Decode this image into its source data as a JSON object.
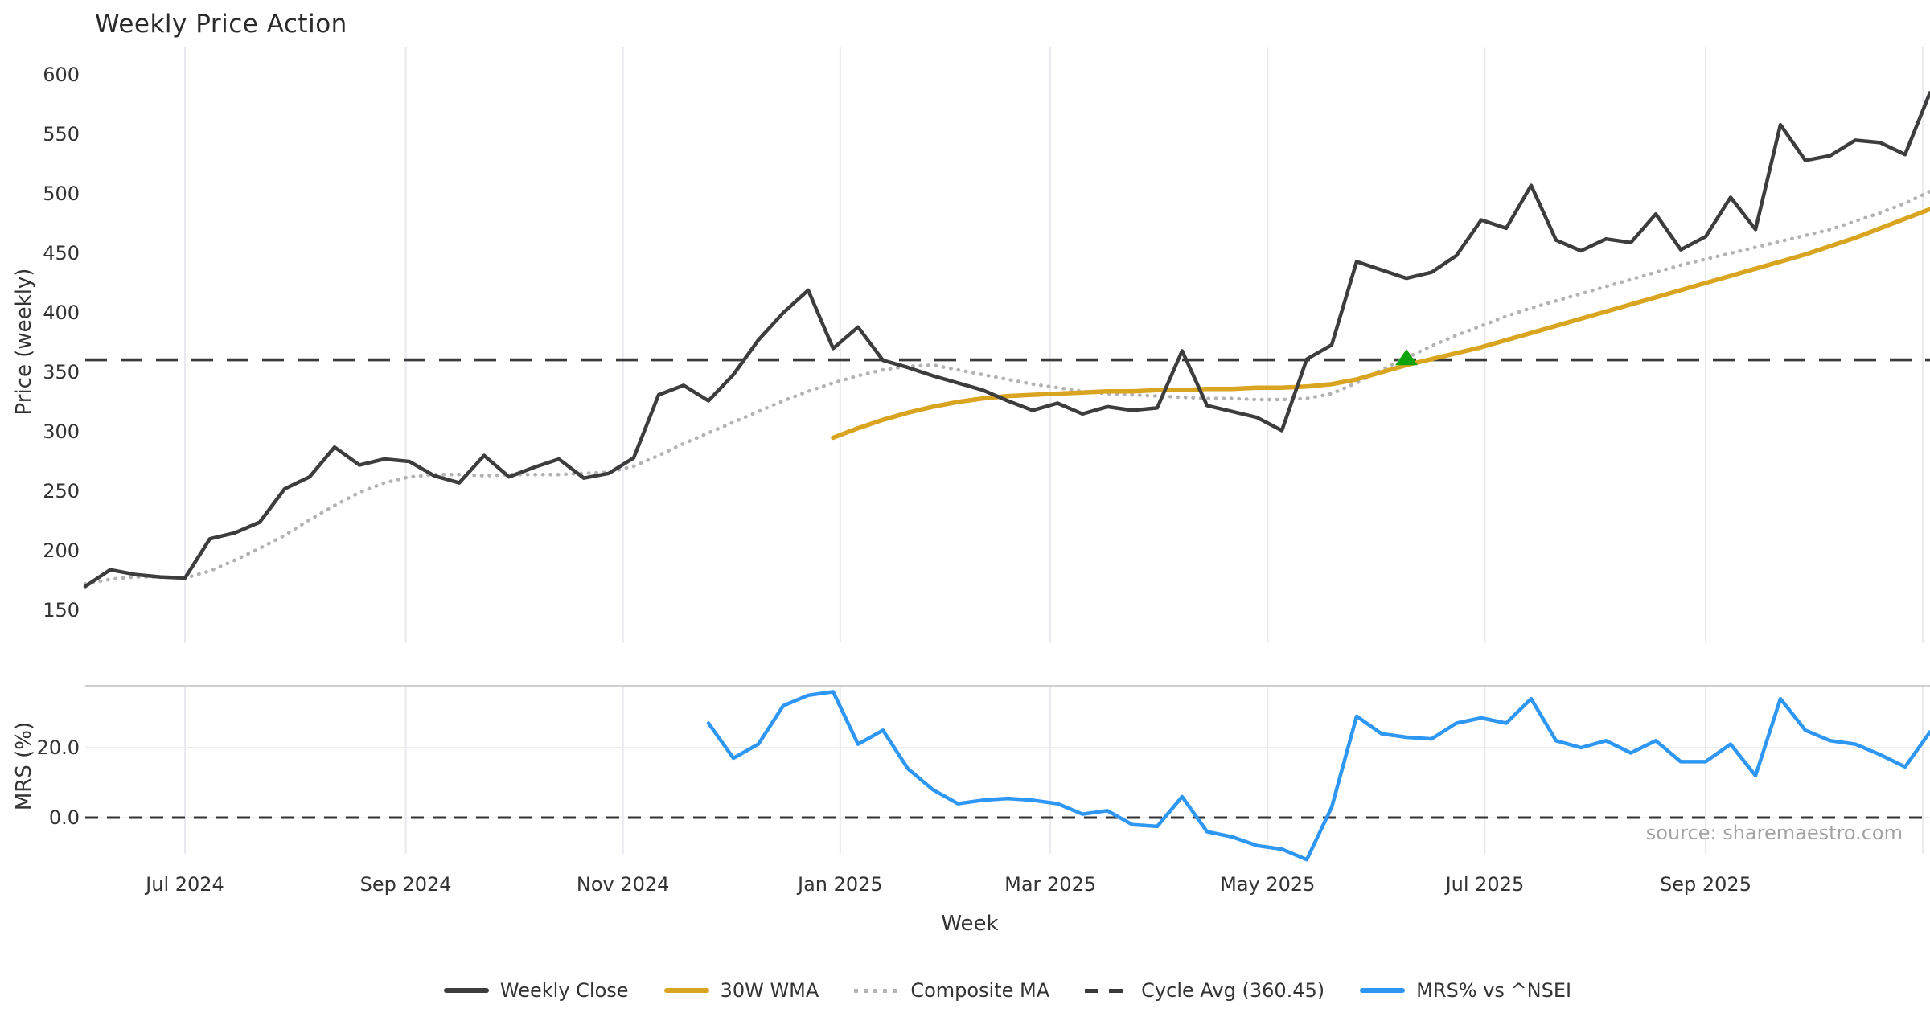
{
  "title": "Weekly Price Action",
  "source_note": "source: sharemaestro.com",
  "axes": {
    "price_axis_label": "Price (weekly)",
    "mrs_axis_label": "MRS (%)",
    "x_axis_label": "Week",
    "price_ticks": [
      600,
      550,
      500,
      450,
      400,
      350,
      300,
      250,
      200,
      150
    ],
    "mrs_ticks": [
      {
        "label": "20.0",
        "value": 20
      },
      {
        "label": "0.0",
        "value": 0
      }
    ],
    "x_ticks": [
      {
        "label": "Jul 2024",
        "week_index": 4.0
      },
      {
        "label": "Sep 2024",
        "week_index": 12.857
      },
      {
        "label": "Nov 2024",
        "week_index": 21.571
      },
      {
        "label": "Jan 2025",
        "week_index": 30.286
      },
      {
        "label": "Mar 2025",
        "week_index": 38.714
      },
      {
        "label": "May 2025",
        "week_index": 47.429
      },
      {
        "label": "Jul 2025",
        "week_index": 56.143
      },
      {
        "label": "Sep 2025",
        "week_index": 65.0
      }
    ],
    "unlabeled_gridline_week_index": 73.714
  },
  "legend": {
    "items": [
      {
        "label": "Weekly Close",
        "style": "solid",
        "color": "#3d3d3d"
      },
      {
        "label": "30W WMA",
        "style": "solid",
        "color": "#d9a521"
      },
      {
        "label": "Composite MA",
        "style": "dotted",
        "color": "#b3b3b3"
      },
      {
        "label": "Cycle Avg (360.45)",
        "style": "dashed",
        "color": "#3a3a3a"
      },
      {
        "label": "MRS% vs ^NSEI",
        "style": "solid",
        "color": "#2e96f3"
      }
    ]
  },
  "colors": {
    "weekly_close": "#3d3d3d",
    "wma_30w": "#d9a521",
    "composite_ma": "#b3b3b3",
    "cycle_avg": "#3a3a3a",
    "mrs": "#2e96f3",
    "signal_marker": "#0ca30c",
    "gridline": "#e9eaef",
    "mrs_gridline": "#ececec",
    "mrs_top_spine": "#cfcfcf"
  },
  "chart_data": {
    "type": "line",
    "title": "Weekly Price Action",
    "xlabel": "Week",
    "panels": [
      {
        "id": "price",
        "ylabel": "Price (weekly)",
        "ylim": [
          140,
          622
        ],
        "yticks": [
          150,
          200,
          250,
          300,
          350,
          400,
          450,
          500,
          550,
          600
        ]
      },
      {
        "id": "mrs",
        "ylabel": "MRS (%)",
        "ylim": [
          -16,
          38
        ],
        "yticks": [
          0.0,
          20.0
        ]
      }
    ],
    "weeks": [
      "2024-06-03",
      "2024-06-10",
      "2024-06-17",
      "2024-06-24",
      "2024-07-01",
      "2024-07-08",
      "2024-07-15",
      "2024-07-22",
      "2024-07-29",
      "2024-08-05",
      "2024-08-12",
      "2024-08-19",
      "2024-08-26",
      "2024-09-02",
      "2024-09-09",
      "2024-09-16",
      "2024-09-23",
      "2024-09-30",
      "2024-10-07",
      "2024-10-14",
      "2024-10-21",
      "2024-10-28",
      "2024-11-04",
      "2024-11-11",
      "2024-11-18",
      "2024-11-25",
      "2024-12-02",
      "2024-12-09",
      "2024-12-16",
      "2024-12-23",
      "2024-12-30",
      "2025-01-06",
      "2025-01-13",
      "2025-01-20",
      "2025-01-27",
      "2025-02-03",
      "2025-02-10",
      "2025-02-17",
      "2025-02-24",
      "2025-03-03",
      "2025-03-10",
      "2025-03-17",
      "2025-03-24",
      "2025-03-31",
      "2025-04-07",
      "2025-04-14",
      "2025-04-21",
      "2025-04-28",
      "2025-05-05",
      "2025-05-12",
      "2025-05-19",
      "2025-05-26",
      "2025-06-02",
      "2025-06-09",
      "2025-06-16",
      "2025-06-23",
      "2025-06-30",
      "2025-07-07",
      "2025-07-14",
      "2025-07-21",
      "2025-07-28",
      "2025-08-04",
      "2025-08-11",
      "2025-08-18",
      "2025-08-25",
      "2025-09-01",
      "2025-09-08",
      "2025-09-15",
      "2025-09-22",
      "2025-09-29",
      "2025-10-06",
      "2025-10-13",
      "2025-10-20",
      "2025-10-27",
      "2025-11-03"
    ],
    "series": [
      {
        "name": "Weekly Close",
        "panel": "price",
        "style": "solid",
        "color": "#3d3d3d",
        "start_week": 0,
        "values": [
          170,
          184,
          180,
          178,
          177,
          210,
          215,
          224,
          252,
          262,
          287,
          272,
          277,
          275,
          263,
          257,
          280,
          262,
          270,
          277,
          261,
          265,
          278,
          331,
          339,
          326,
          348,
          377,
          400,
          419,
          370,
          388,
          360,
          354,
          347,
          341,
          335,
          326,
          318,
          324,
          315,
          321,
          318,
          320,
          368,
          322,
          317,
          312,
          301,
          361,
          373,
          443,
          436,
          429,
          434,
          448,
          478,
          471,
          507,
          461,
          452,
          462,
          459,
          483,
          453,
          464,
          497,
          470,
          558,
          528,
          532,
          545,
          543,
          533,
          585
        ]
      },
      {
        "name": "30W WMA",
        "panel": "price",
        "style": "solid",
        "color": "#d9a521",
        "start_week": 30,
        "values": [
          295,
          303,
          310,
          316,
          321,
          325,
          328,
          330,
          331,
          332,
          333,
          334,
          334,
          335,
          335,
          336,
          336,
          337,
          337,
          338,
          340,
          344,
          350,
          356,
          361,
          366,
          371,
          377,
          383,
          389,
          395,
          401,
          407,
          413,
          419,
          425,
          431,
          437,
          443,
          449,
          456,
          463,
          471,
          479,
          487
        ]
      },
      {
        "name": "Composite MA",
        "panel": "price",
        "style": "dotted",
        "color": "#b3b3b3",
        "start_week": 0,
        "values": [
          172,
          176,
          178,
          178,
          177,
          183,
          192,
          202,
          213,
          226,
          238,
          249,
          257,
          262,
          264,
          264,
          263,
          264,
          264,
          264,
          265,
          266,
          271,
          280,
          290,
          299,
          308,
          317,
          326,
          334,
          341,
          347,
          352,
          355,
          356,
          352,
          348,
          344,
          340,
          337,
          334,
          332,
          331,
          330,
          329,
          328,
          328,
          327,
          327,
          328,
          332,
          341,
          352,
          362,
          372,
          381,
          389,
          397,
          404,
          410,
          416,
          422,
          428,
          434,
          440,
          445,
          450,
          455,
          460,
          465,
          470,
          477,
          484,
          492,
          502
        ]
      },
      {
        "name": "MRS% vs ^NSEI",
        "panel": "mrs",
        "style": "solid",
        "color": "#2e96f3",
        "start_week": 25,
        "values": [
          27,
          17,
          21,
          32,
          35,
          36,
          21,
          25,
          14,
          8,
          4,
          5,
          5.5,
          5,
          4,
          1,
          2,
          -2,
          -2.5,
          6,
          -4,
          -5.5,
          -8,
          -9,
          -12,
          3,
          29,
          24,
          23,
          22.5,
          27,
          28.5,
          27,
          34,
          22,
          20,
          22,
          18.5,
          22,
          16,
          16,
          21,
          12,
          34,
          25,
          22,
          21,
          18,
          14.5,
          24.5
        ]
      }
    ],
    "cycle_avg": {
      "label": "Cycle Avg (360.45)",
      "value": 360.45,
      "style": "dashed",
      "color": "#3a3a3a"
    },
    "mrs_zero_line": {
      "value": 0,
      "style": "dashed",
      "color": "#333333"
    },
    "signal_marker": {
      "shape": "triangle-up",
      "color": "#0ca30c",
      "week": "2025-06-09",
      "value": 362,
      "on_series": "Composite MA"
    }
  }
}
